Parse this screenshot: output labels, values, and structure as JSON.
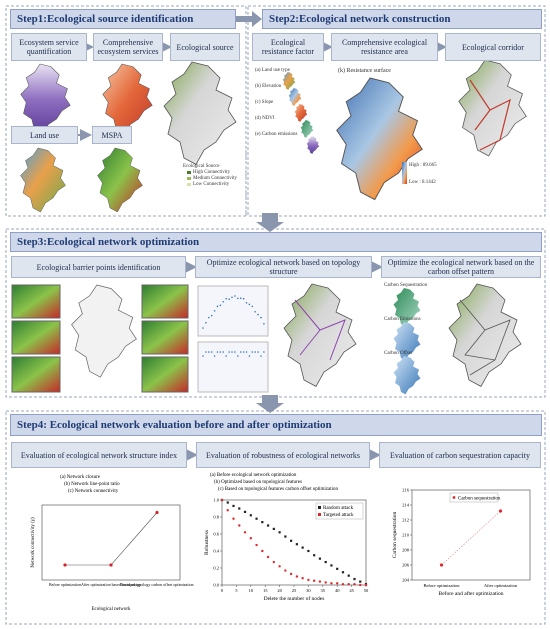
{
  "steps": [
    {
      "title": "Step1:Ecological source identification",
      "boxes": [
        "Ecosystem service quantification",
        "Comprehensive ecosystem services",
        "Ecological source",
        "Land use",
        "MSPA"
      ]
    },
    {
      "title": "Step2:Ecological network construction",
      "boxes": [
        "Ecological resistance factor",
        "Comprehensive ecological resistance area",
        "Ecological corridor"
      ]
    },
    {
      "title": "Step3:Ecological network optimization",
      "boxes": [
        "Ecological barrier points identification",
        "Optimize ecological network based on topology structure",
        "Optimize the ecological network based on the carbon offset pattern"
      ]
    },
    {
      "title": "Step4: Ecological network evaluation before and after optimization",
      "boxes": [
        "Evaluation of ecological network structure index",
        "Evaluation of robustness of ecological networks",
        "Evaluation of  carbon sequestration capacity"
      ]
    }
  ],
  "source_legend": [
    "Ecological Source",
    "High Connectivity",
    "Medium Connectivity",
    "Low Connectivity"
  ],
  "resistance": {
    "title": "(k) Resistance surface",
    "high": "High : 89.665",
    "low": "Low : 8.1442",
    "factors": [
      "(a) Land use type",
      "(b) Elevation",
      "(c) Slope",
      "(d) NDVI",
      "(e) Carbon emissions"
    ]
  },
  "carbon_maps": [
    "Carbon Sequestration",
    "Carbon Emissions",
    "Carbon Offset"
  ],
  "structure_chart": {
    "panels": [
      "(a) Network closure",
      "(b) Network line-point ratio",
      "(c) Network connectivity"
    ],
    "ylabel": "Network connectivity (γ)",
    "xlabel": "Ecological network",
    "categories": [
      "Before optimization",
      "After optimization based on topology",
      "Based on topology carbon offset optimization"
    ],
    "values": [
      0.38,
      0.38,
      0.45
    ],
    "ylim": [
      0.36,
      0.46
    ],
    "color": "#d62728"
  },
  "robustness_chart": {
    "type": "scatter",
    "panels": [
      "(a) Before ecological network optimization",
      "(b) Optimized based on topological features",
      "(c) Based on topological features carbon offset optimization"
    ],
    "xlabel": "Delete the number of nodes",
    "ylabel": "Robustness",
    "x": [
      0,
      2,
      4,
      6,
      8,
      10,
      12,
      14,
      16,
      18,
      20,
      22,
      24,
      26,
      28,
      30,
      32,
      34,
      36,
      38,
      40,
      42,
      44,
      46,
      48,
      50
    ],
    "series": [
      {
        "name": "Random attack",
        "color": "#222222",
        "values": [
          1,
          0.97,
          0.93,
          0.9,
          0.86,
          0.82,
          0.78,
          0.74,
          0.7,
          0.66,
          0.62,
          0.57,
          0.52,
          0.48,
          0.44,
          0.4,
          0.35,
          0.31,
          0.27,
          0.23,
          0.19,
          0.15,
          0.11,
          0.07,
          0.04,
          0.01
        ]
      },
      {
        "name": "Targeted attack",
        "color": "#e8262a",
        "values": [
          1,
          0.88,
          0.78,
          0.7,
          0.62,
          0.55,
          0.47,
          0.4,
          0.33,
          0.27,
          0.22,
          0.17,
          0.13,
          0.1,
          0.08,
          0.06,
          0.05,
          0.04,
          0.03,
          0.02,
          0.02,
          0.01,
          0.01,
          0.01,
          0,
          0
        ]
      }
    ],
    "xlim": [
      0,
      50
    ],
    "xticks": [
      0,
      5,
      10,
      15,
      20,
      25,
      30,
      35,
      40,
      45,
      50
    ],
    "ylim": [
      0,
      1
    ],
    "yticks": [
      {
        "value": 0,
        "label": "0.0"
      },
      0.2,
      0.4,
      0.6,
      0.8,
      {
        "value": 1,
        "label": "1.0"
      }
    ]
  },
  "carbon_chart": {
    "type": "line",
    "legend": "Carbon sequestration",
    "xlabel": "Before and after optimization",
    "ylabel": "Carbon sequestration",
    "categories": [
      "Before optimization",
      "After optimization"
    ],
    "values": [
      206.0,
      213.2
    ],
    "ylim": [
      204,
      216
    ],
    "yticks": [
      204,
      206,
      208,
      210,
      212,
      214,
      216
    ],
    "color": "#e8262a"
  }
}
